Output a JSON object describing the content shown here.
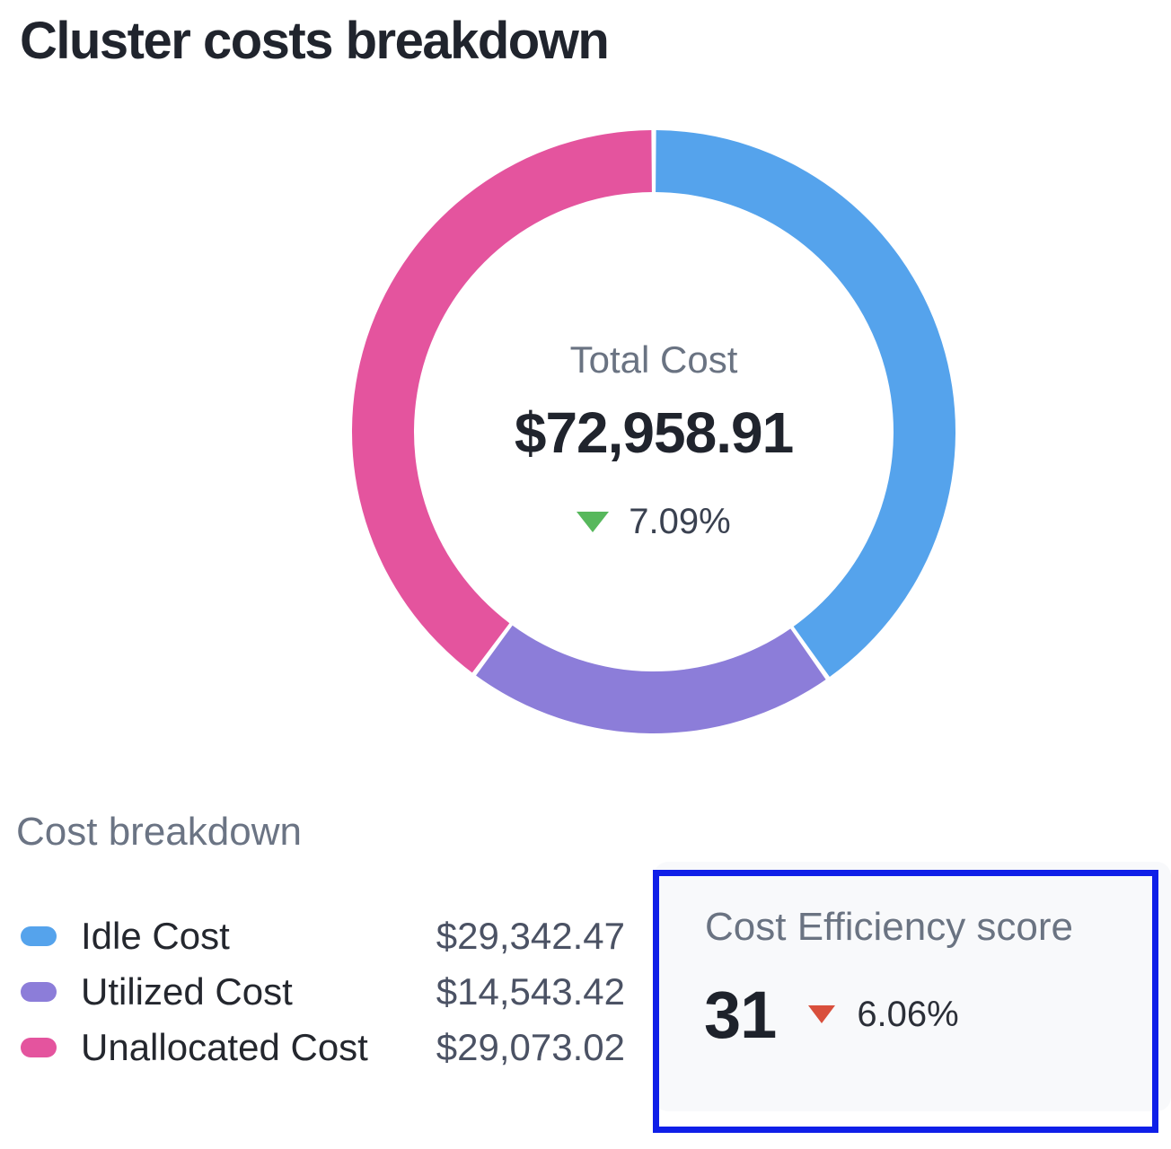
{
  "title": "Cluster costs breakdown",
  "chart_data": {
    "type": "pie",
    "subtype": "donut",
    "title": "Cluster costs breakdown",
    "start_angle_deg": 0,
    "direction": "clockwise",
    "total": 72958.91,
    "center": {
      "label": "Total Cost",
      "value": "$72,958.91",
      "delta": "7.09%",
      "delta_direction": "down",
      "delta_color": "#57b85c"
    },
    "segments": [
      {
        "label": "Idle Cost",
        "value": 29342.47,
        "display": "$29,342.47",
        "percent": 40.2,
        "color": "#55a3ec"
      },
      {
        "label": "Utilized Cost",
        "value": 14543.42,
        "display": "$14,543.42",
        "percent": 19.9,
        "color": "#8c7dd9"
      },
      {
        "label": "Unallocated Cost",
        "value": 29073.02,
        "display": "$29,073.02",
        "percent": 39.9,
        "color": "#e4549e"
      }
    ],
    "legend_position": "bottom-left"
  },
  "breakdown": {
    "heading": "Cost breakdown"
  },
  "efficiency": {
    "heading": "Cost Efficiency score",
    "score": "31",
    "delta": "6.06%",
    "delta_direction": "down",
    "delta_color": "#d94f3c",
    "highlight_color": "#0f1fe8",
    "card_background": "#f8f9fb"
  }
}
